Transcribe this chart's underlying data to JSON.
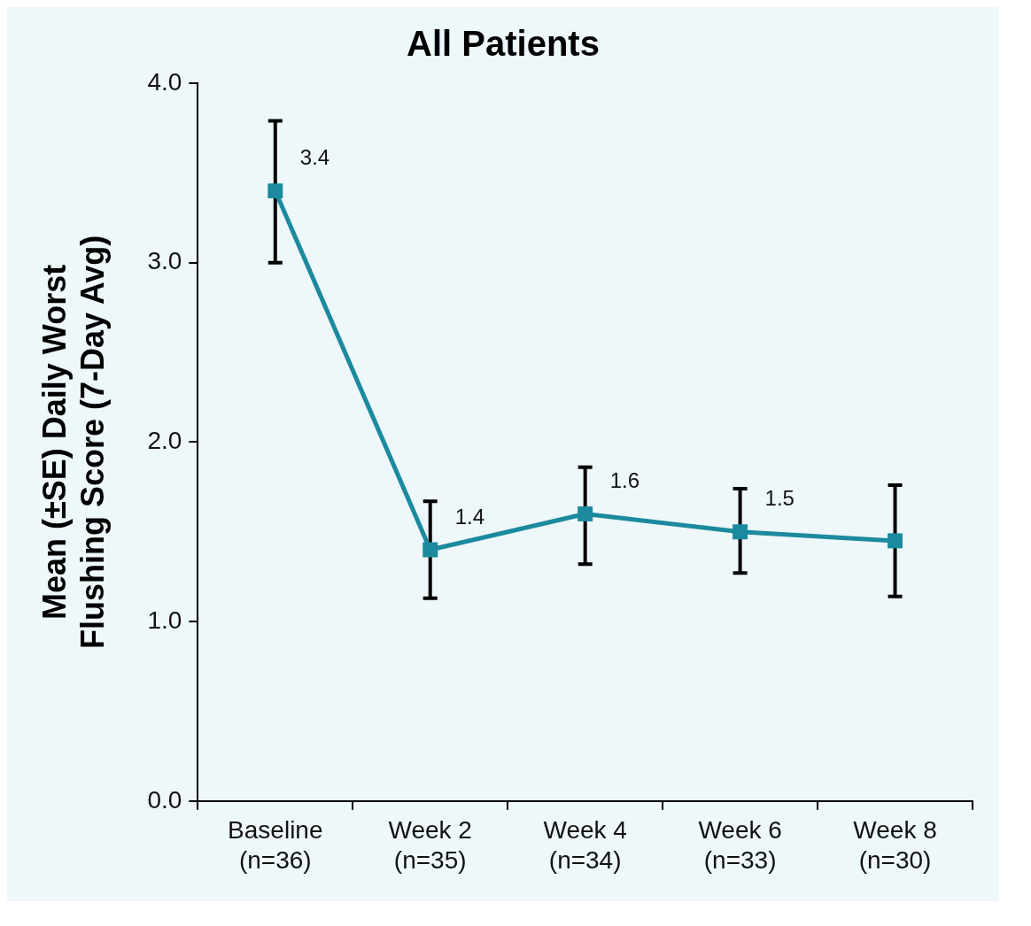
{
  "chart_data": {
    "type": "line",
    "title": "All Patients",
    "ylabel": "Mean (±SE) Daily Worst\nFlushing Score (7-Day Avg)",
    "categories": [
      "Baseline\n(n=36)",
      "Week 2\n(n=35)",
      "Week 4\n(n=34)",
      "Week 6\n(n=33)",
      "Week 8\n(n=30)"
    ],
    "series": [
      {
        "color": "#1b8a9e",
        "values": [
          3.4,
          1.4,
          1.6,
          1.5,
          1.45
        ],
        "errors": [
          [
            3.0,
            3.79
          ],
          [
            1.13,
            1.67
          ],
          [
            1.32,
            1.86
          ],
          [
            1.27,
            1.74
          ],
          [
            1.14,
            1.76
          ]
        ],
        "value_labels": [
          "3.4",
          "1.4",
          "1.6",
          "1.5",
          null
        ]
      }
    ],
    "ylim": [
      0,
      4
    ],
    "yticks": [
      {
        "value": 0,
        "label": "0.0"
      },
      {
        "value": 1,
        "label": "1.0"
      },
      {
        "value": 2,
        "label": "2.0"
      },
      {
        "value": 3,
        "label": "3.0"
      },
      {
        "value": 4,
        "label": "4.0"
      }
    ],
    "grid": false,
    "legend": false,
    "marker": "square",
    "line_style": "solid"
  }
}
